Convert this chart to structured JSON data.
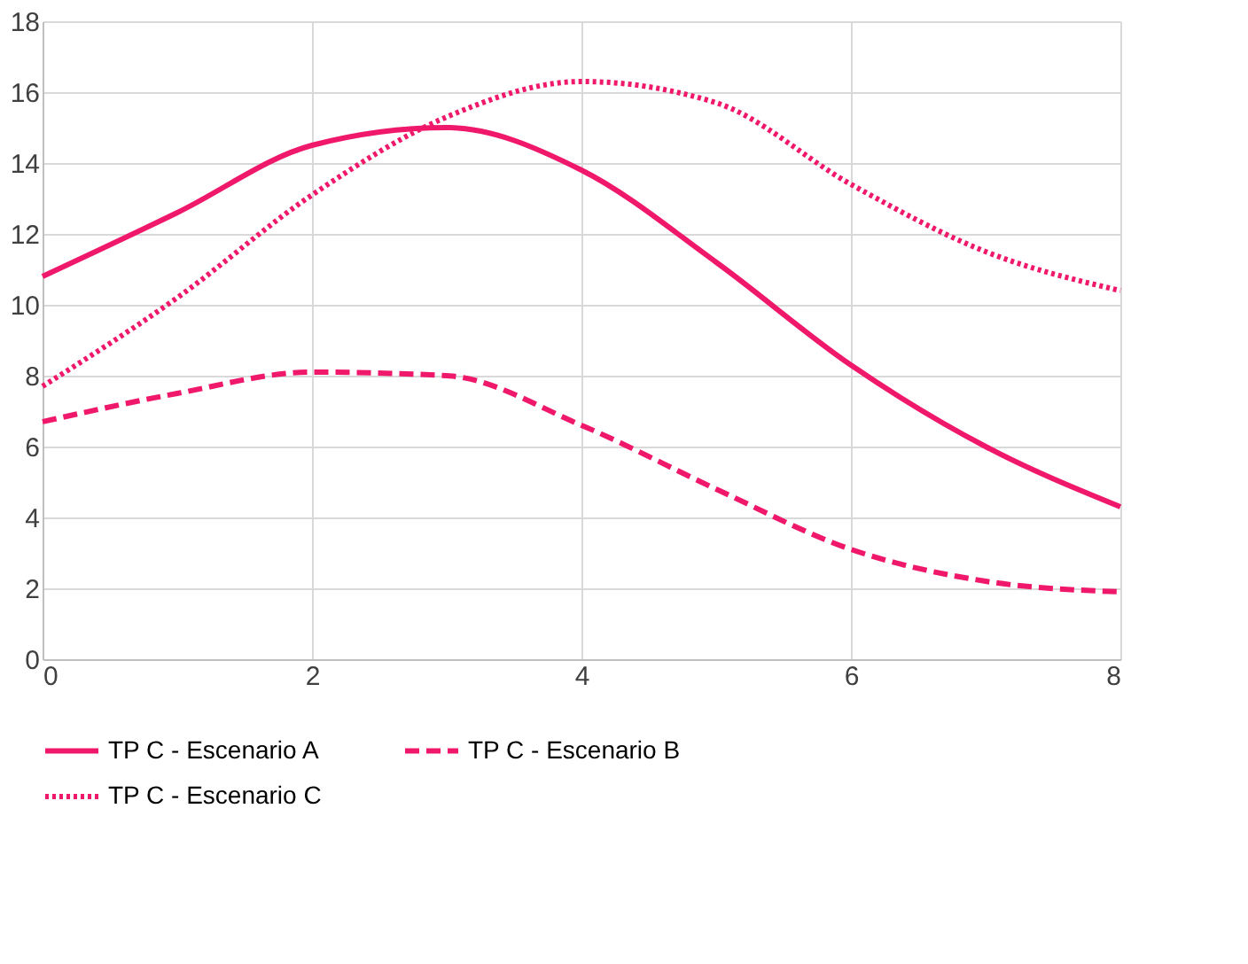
{
  "chart_data": {
    "type": "line",
    "x": [
      0,
      1,
      2,
      3,
      4,
      5,
      6,
      7,
      8
    ],
    "series": [
      {
        "name": "TP C - Escenario A",
        "color": "#f0186b",
        "line_style": "solid",
        "values": [
          10.8,
          12.6,
          14.5,
          15.0,
          13.8,
          11.2,
          8.3,
          6.0,
          4.3
        ]
      },
      {
        "name": "TP C - Escenario B",
        "color": "#f0186b",
        "line_style": "dashed",
        "values": [
          6.7,
          7.5,
          8.1,
          8.0,
          6.6,
          4.8,
          3.1,
          2.2,
          1.9
        ]
      },
      {
        "name": "TP C - Escenario C",
        "color": "#f0186b",
        "line_style": "dotted",
        "values": [
          7.7,
          10.2,
          13.1,
          15.3,
          16.3,
          15.7,
          13.4,
          11.5,
          10.4
        ]
      }
    ],
    "xlim": [
      0,
      8
    ],
    "xticks": [
      0,
      2,
      4,
      6,
      8
    ],
    "ylim": [
      0,
      18
    ],
    "yticks": [
      0,
      2,
      4,
      6,
      8,
      10,
      12,
      14,
      16,
      18
    ],
    "grid": true,
    "legend": "bottom",
    "marker": "none"
  }
}
